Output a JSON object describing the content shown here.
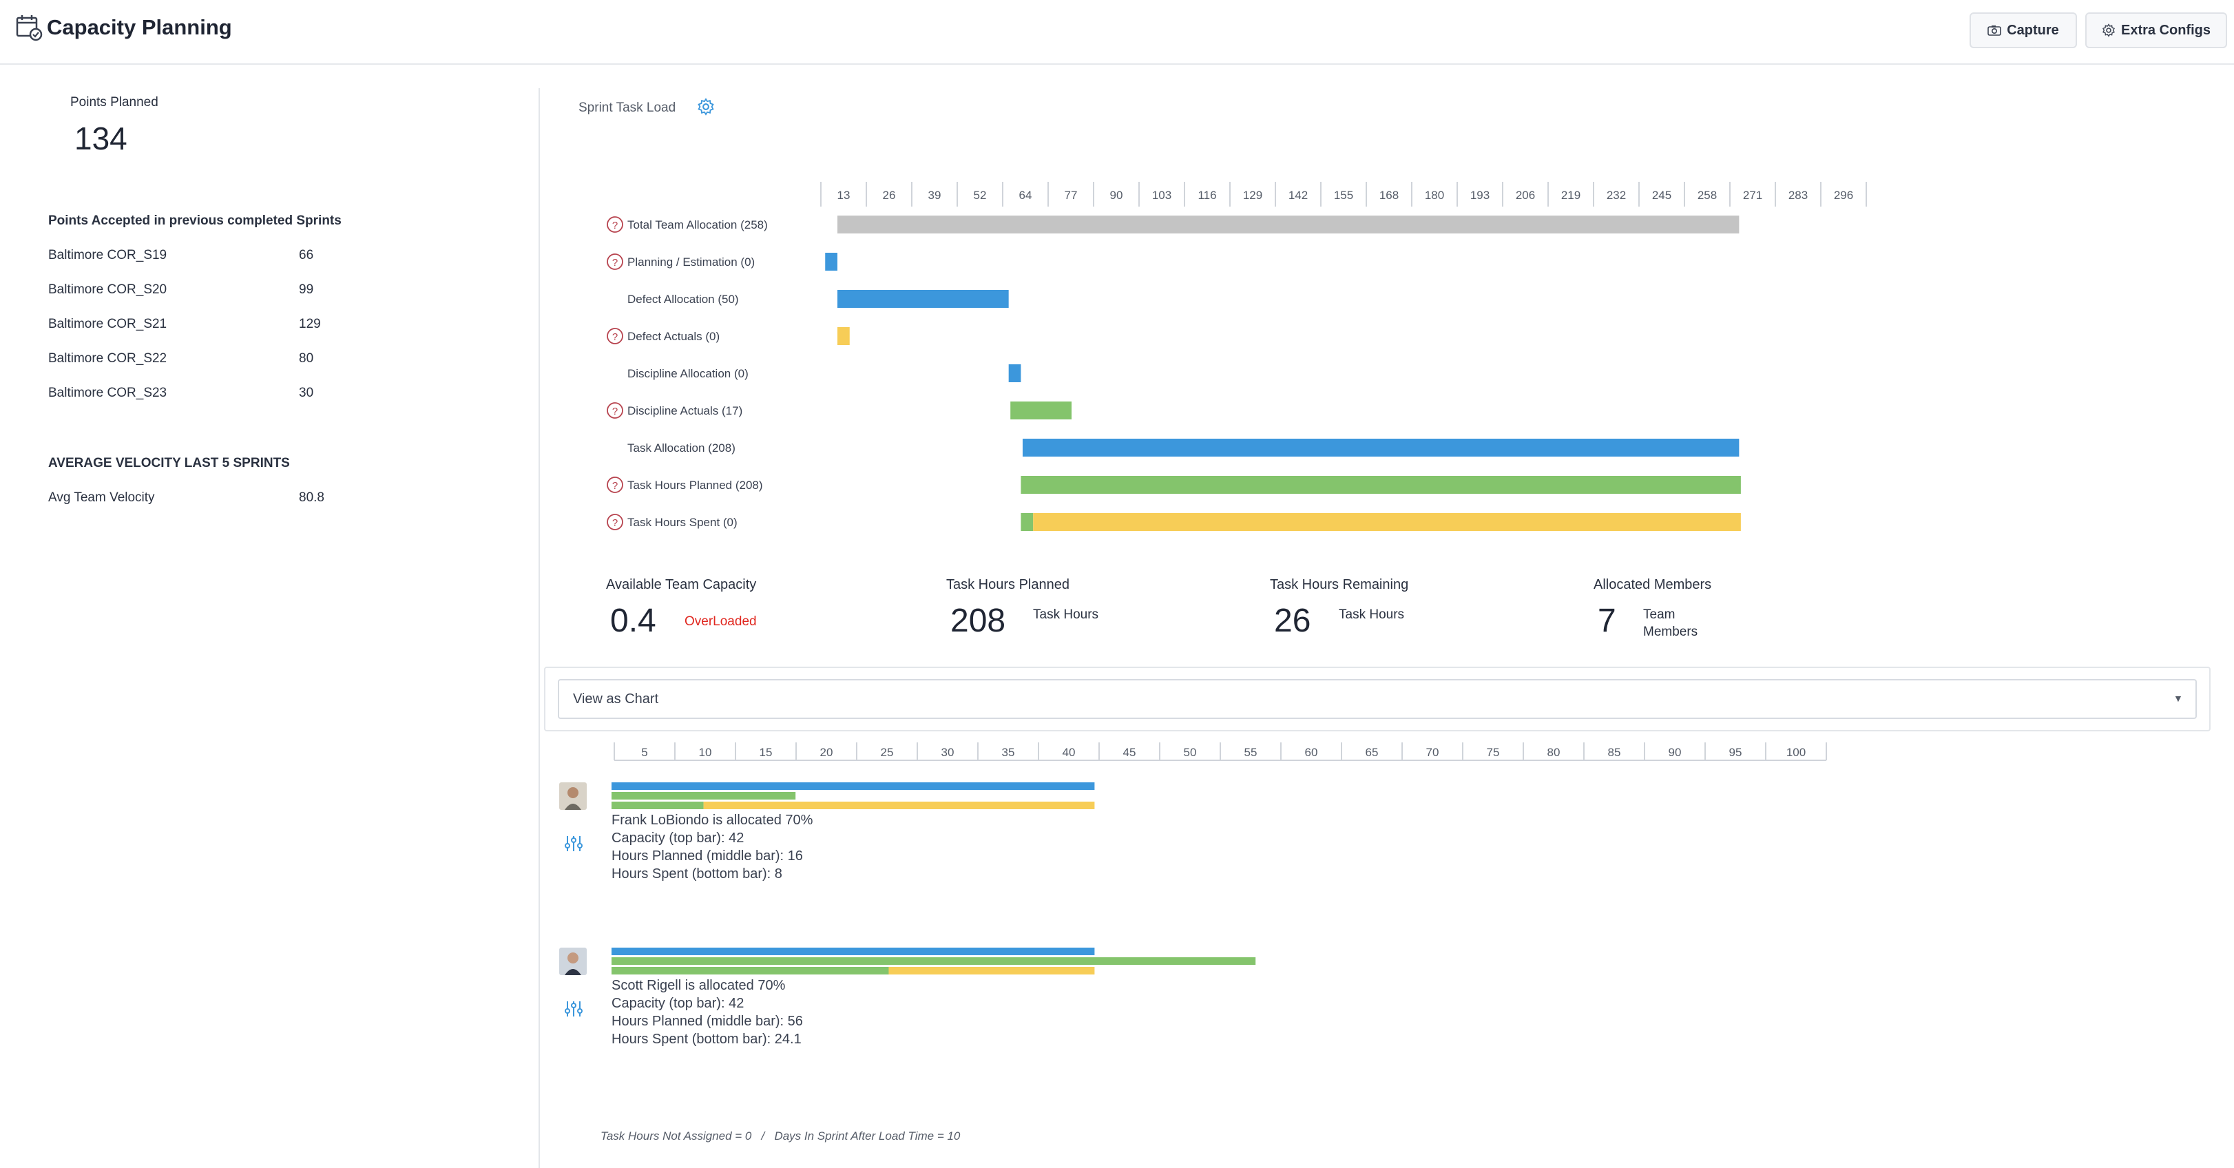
{
  "header": {
    "title": "Capacity Planning",
    "capture_label": "Capture",
    "extra_configs_label": "Extra Configs"
  },
  "left_panel": {
    "points_planned_label": "Points Planned",
    "points_planned_value": "134",
    "accepted_heading": "Points Accepted in previous completed Sprints",
    "sprints": [
      {
        "name": "Baltimore COR_S19",
        "points": "66"
      },
      {
        "name": "Baltimore COR_S20",
        "points": "99"
      },
      {
        "name": "Baltimore COR_S21",
        "points": "129"
      },
      {
        "name": "Baltimore COR_S22",
        "points": "80"
      },
      {
        "name": "Baltimore COR_S23",
        "points": "30"
      }
    ],
    "velocity_heading": "AVERAGE VELOCITY LAST 5 SPRINTS",
    "avg_velocity_label": "Avg Team Velocity",
    "avg_velocity_value": "80.8"
  },
  "sprint_task_load": {
    "title": "Sprint Task Load",
    "ticks": [
      "13",
      "26",
      "39",
      "52",
      "64",
      "77",
      "90",
      "103",
      "116",
      "129",
      "142",
      "155",
      "168",
      "180",
      "193",
      "206",
      "219",
      "232",
      "245",
      "258",
      "271",
      "283",
      "296"
    ],
    "colors": {
      "gray": "#c4c4c4",
      "blue": "#3c97dc",
      "green": "#84c46c",
      "yellow": "#f7cd57"
    },
    "rows": [
      {
        "label": "Total Team Allocation (258)",
        "help": true,
        "segments": [
          {
            "start": 0,
            "end": 258,
            "color": "gray"
          }
        ]
      },
      {
        "label": "Planning / Estimation (0)",
        "help": true,
        "segments": [
          {
            "start": -3.5,
            "end": 0,
            "color": "blue"
          }
        ]
      },
      {
        "label": "Defect Allocation (50)",
        "help": false,
        "segments": [
          {
            "start": 0,
            "end": 49,
            "color": "blue"
          }
        ]
      },
      {
        "label": "Defect Actuals (0)",
        "help": true,
        "segments": [
          {
            "start": 0,
            "end": 3.5,
            "color": "yellow"
          }
        ]
      },
      {
        "label": "Discipline Allocation (0)",
        "help": false,
        "segments": [
          {
            "start": 49,
            "end": 52.5,
            "color": "blue"
          }
        ]
      },
      {
        "label": "Discipline Actuals (17)",
        "help": true,
        "segments": [
          {
            "start": 49.5,
            "end": 67,
            "color": "green"
          }
        ]
      },
      {
        "label": "Task Allocation (208)",
        "help": false,
        "segments": [
          {
            "start": 53,
            "end": 258,
            "color": "blue"
          }
        ]
      },
      {
        "label": "Task Hours Planned (208)",
        "help": true,
        "segments": [
          {
            "start": 52.5,
            "end": 258.5,
            "color": "green"
          }
        ]
      },
      {
        "label": "Task Hours Spent (0)",
        "help": true,
        "segments": [
          {
            "start": 52.5,
            "end": 56,
            "color": "green"
          },
          {
            "start": 56,
            "end": 258.5,
            "color": "yellow"
          }
        ]
      }
    ]
  },
  "stats": {
    "available_capacity_label": "Available Team Capacity",
    "available_capacity_value": "0.4",
    "overloaded_label": "OverLoaded",
    "hours_planned_label": "Task Hours Planned",
    "hours_planned_value": "208",
    "hours_planned_unit": "Task Hours",
    "hours_remaining_label": "Task Hours Remaining",
    "hours_remaining_value": "26",
    "hours_remaining_unit": "Task Hours",
    "allocated_members_label": "Allocated Members",
    "allocated_members_value": "7",
    "allocated_members_unit": "Team Members"
  },
  "view_select": {
    "value": "View as Chart"
  },
  "member_chart": {
    "ticks": [
      "5",
      "10",
      "15",
      "20",
      "25",
      "30",
      "35",
      "40",
      "45",
      "50",
      "55",
      "60",
      "65",
      "70",
      "75",
      "80",
      "85",
      "90",
      "95",
      "100"
    ],
    "members": [
      {
        "allocated_text": "Frank LoBiondo is allocated 70%",
        "capacity_text": "Capacity (top bar): 42",
        "planned_text": "Hours Planned (middle bar): 16",
        "spent_text": "Hours Spent (bottom bar): 8",
        "capacity": 42,
        "planned": 16,
        "spent": 8
      },
      {
        "allocated_text": "Scott Rigell is allocated 70%",
        "capacity_text": "Capacity (top bar): 42",
        "planned_text": "Hours Planned (middle bar): 56",
        "spent_text": "Hours Spent (bottom bar): 24.1",
        "capacity": 42,
        "planned": 56,
        "spent": 24.1
      }
    ]
  },
  "footer": {
    "note": "Task Hours Not Assigned = 0   /   Days In Sprint After Load Time = 10"
  }
}
